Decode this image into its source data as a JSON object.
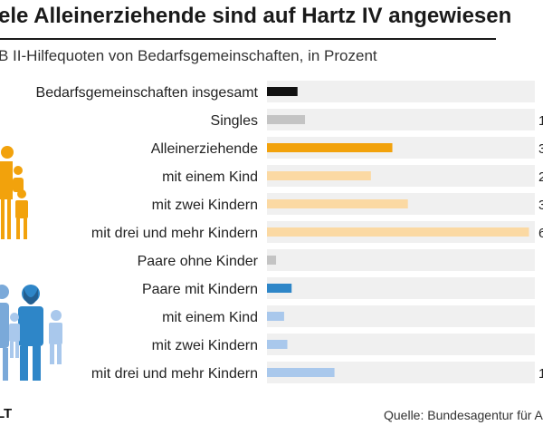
{
  "header": {
    "title": "ele Alleinerziehende sind auf Hartz IV angewiesen",
    "subtitle": "B II-Hilfequoten von Bedarfsgemeinschaften, in Prozent"
  },
  "footer": {
    "logo": "LT",
    "source": "Quelle: Bundesagentur für A"
  },
  "colors": {
    "track": "#f0f0f0",
    "black": "#111111",
    "gray": "#c4c4c4",
    "orange": "#f2a20c",
    "light_orange": "#fbd9a3",
    "blue": "#2e86c8",
    "light_blue": "#a9c8ec"
  },
  "chart_data": {
    "type": "bar",
    "orientation": "horizontal",
    "categories": [
      "Bedarfsgemeinschaften insgesamt",
      "Singles",
      "Alleinerziehende",
      "mit einem Kind",
      "mit zwei Kindern",
      "mit drei und mehr Kindern",
      "Paare ohne Kinder",
      "Paare mit Kindern",
      "mit einem Kind",
      "mit zwei Kindern",
      "mit drei und mehr Kindern"
    ],
    "values": [
      5.7,
      7.1,
      23.4,
      19.4,
      26.3,
      48.9,
      1.7,
      4.6,
      3.2,
      3.8,
      12.6
    ],
    "value_labels": [
      "",
      "1",
      "3",
      "2",
      "3",
      "6",
      "",
      "",
      "",
      "",
      "1"
    ],
    "bar_colors": [
      "black",
      "gray",
      "orange",
      "light_orange",
      "light_orange",
      "light_orange",
      "gray",
      "blue",
      "light_blue",
      "light_blue",
      "light_blue"
    ],
    "xlim": [
      0,
      50
    ]
  }
}
